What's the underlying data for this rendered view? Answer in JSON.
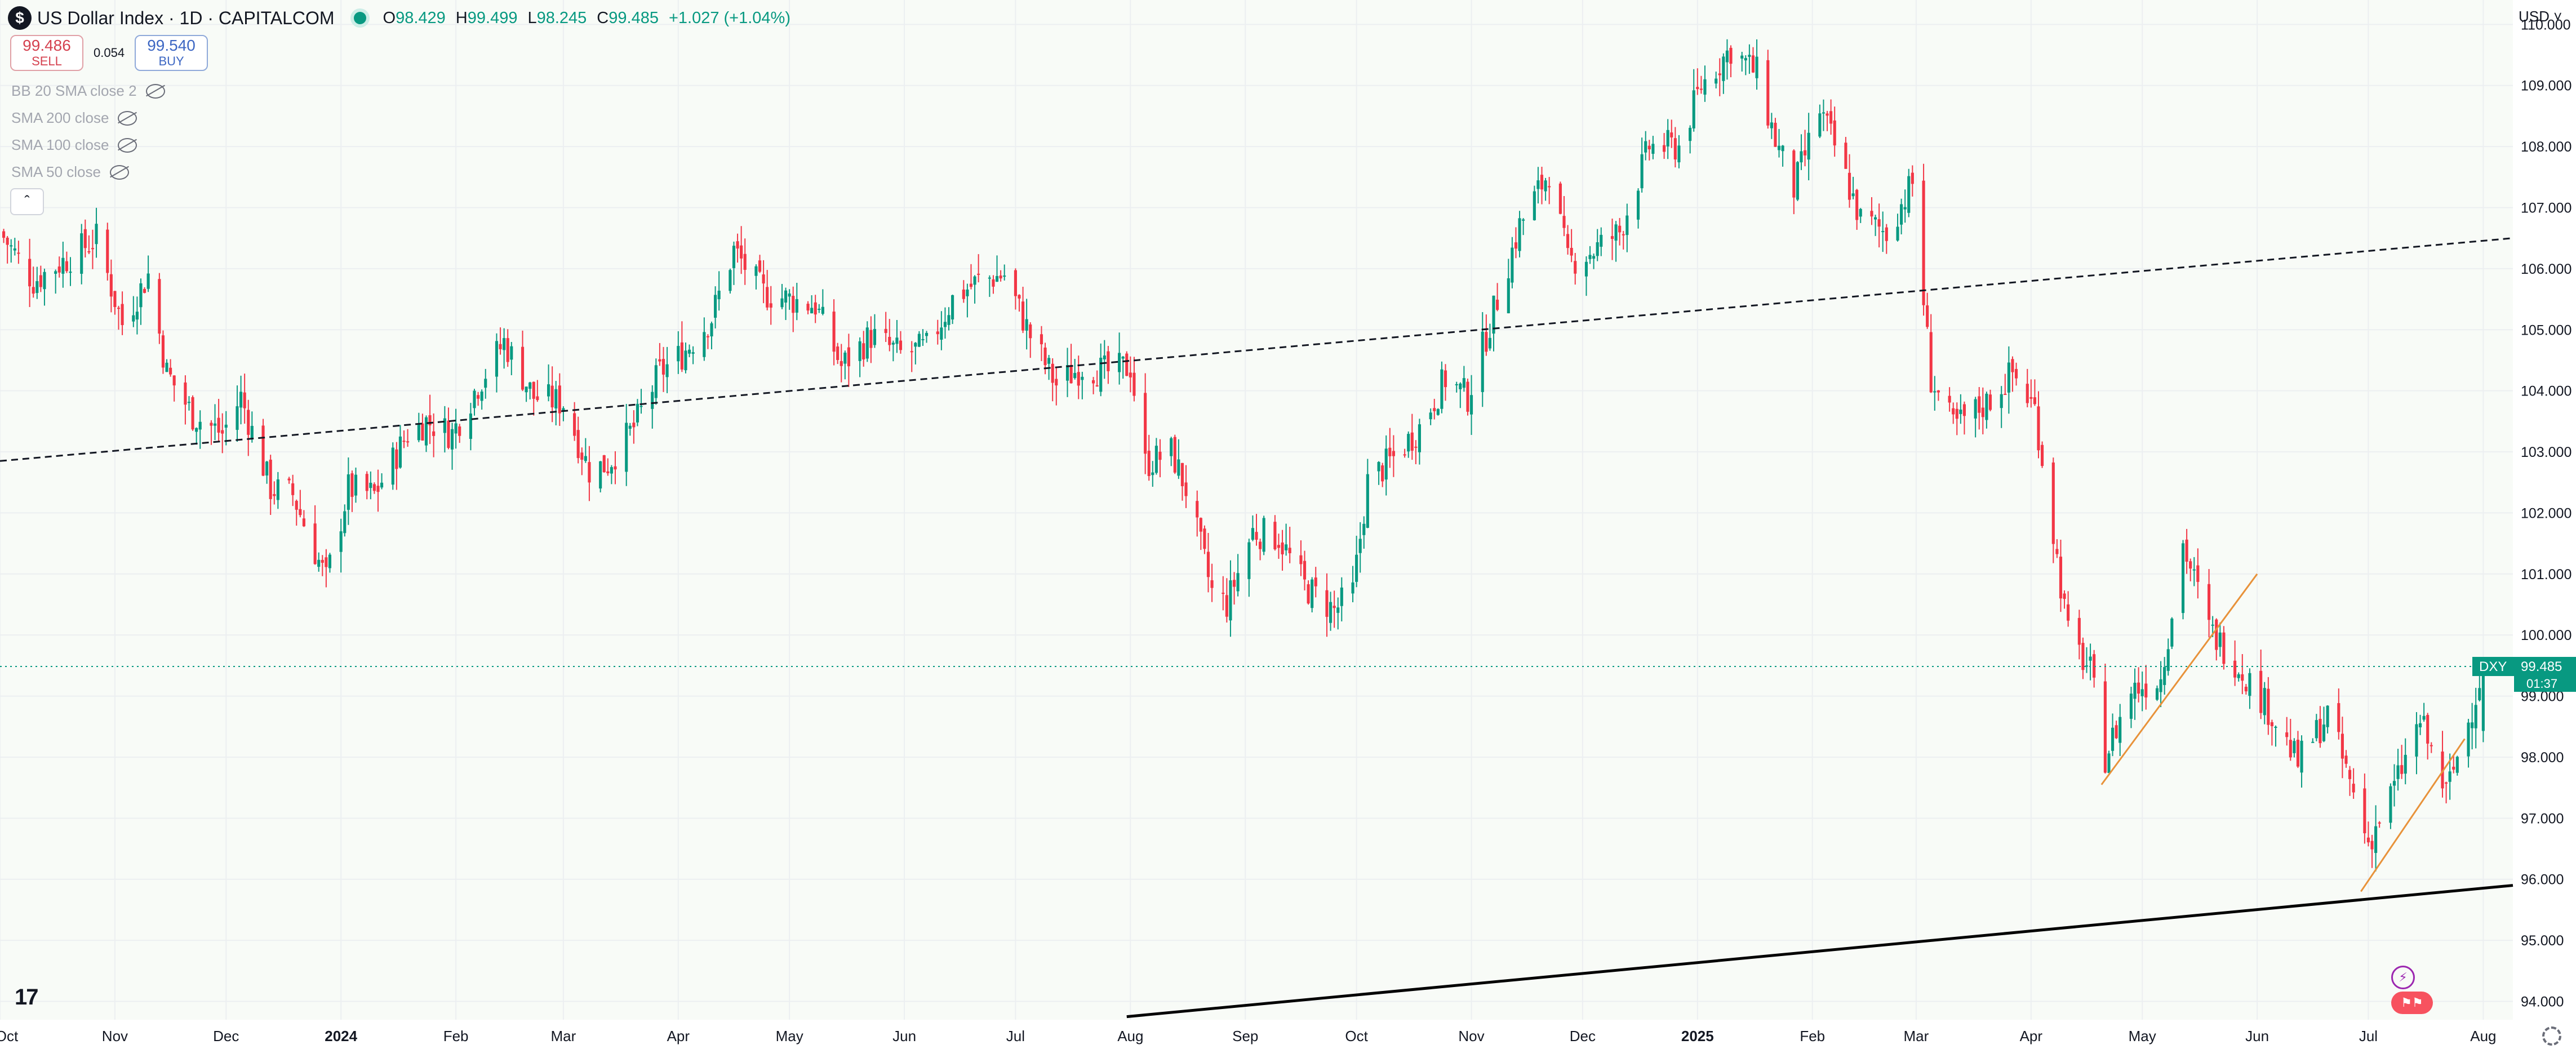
{
  "header": {
    "title": "US Dollar Index · 1D · CAPITALCOM",
    "open_label": "O",
    "open": "98.429",
    "high_label": "H",
    "high": "99.499",
    "low_label": "L",
    "low": "98.245",
    "close_label": "C",
    "close": "99.485",
    "change": "+1.027 (+1.04%)"
  },
  "trade": {
    "sell_price": "99.486",
    "sell_label": "SELL",
    "spread": "0.054",
    "buy_price": "99.540",
    "buy_label": "BUY"
  },
  "indicators": [
    "BB 20 SMA close 2",
    "SMA 200 close",
    "SMA 100 close",
    "SMA 50 close"
  ],
  "currency": "USD",
  "price_tag": {
    "symbol": "DXY",
    "price": "99.485",
    "countdown": "01:37"
  },
  "colors": {
    "up": "#089981",
    "down": "#f23645",
    "background": "#f8fbf7",
    "grid": "#eceff1"
  },
  "icons": [
    "tradingview-logo-icon",
    "lightning-icon",
    "us-flag-icon",
    "settings-gear-icon",
    "eye-off-icon",
    "chevron-up-icon"
  ],
  "chart_data": {
    "type": "candlestick",
    "timeframe": "1D",
    "y_axis": {
      "ticks": [
        "110.000",
        "109.000",
        "108.000",
        "107.000",
        "106.000",
        "105.000",
        "104.000",
        "103.000",
        "102.000",
        "101.000",
        "100.000",
        "99.000",
        "98.000",
        "97.000",
        "96.000",
        "95.000",
        "94.000"
      ],
      "ylim": [
        93.7,
        110.4
      ]
    },
    "x_axis": {
      "ticks": [
        "Oct",
        "Nov",
        "Dec",
        "2024",
        "Feb",
        "Mar",
        "Apr",
        "May",
        "Jun",
        "Jul",
        "Aug",
        "Sep",
        "Oct",
        "Nov",
        "Dec",
        "2025",
        "Feb",
        "Mar",
        "Apr",
        "May",
        "Jun",
        "Jul",
        "Aug"
      ],
      "xlim": [
        "2023-10-01",
        "2025-08-09"
      ]
    },
    "close_path": [
      [
        "2023-10-01",
        106.6
      ],
      [
        "2023-10-10",
        105.8
      ],
      [
        "2023-10-20",
        106.2
      ],
      [
        "2023-10-27",
        106.5
      ],
      [
        "2023-11-03",
        105.1
      ],
      [
        "2023-11-10",
        105.9
      ],
      [
        "2023-11-15",
        104.3
      ],
      [
        "2023-11-22",
        103.6
      ],
      [
        "2023-11-30",
        103.3
      ],
      [
        "2023-12-05",
        103.9
      ],
      [
        "2023-12-13",
        102.4
      ],
      [
        "2023-12-19",
        102.3
      ],
      [
        "2023-12-28",
        100.9
      ],
      [
        "2024-01-03",
        102.4
      ],
      [
        "2024-01-10",
        102.3
      ],
      [
        "2024-01-19",
        103.3
      ],
      [
        "2024-01-24",
        103.5
      ],
      [
        "2024-01-31",
        103.3
      ],
      [
        "2024-02-07",
        104.1
      ],
      [
        "2024-02-14",
        104.8
      ],
      [
        "2024-02-22",
        103.9
      ],
      [
        "2024-03-01",
        103.8
      ],
      [
        "2024-03-08",
        102.7
      ],
      [
        "2024-03-13",
        102.8
      ],
      [
        "2024-03-20",
        103.4
      ],
      [
        "2024-03-27",
        104.3
      ],
      [
        "2024-04-02",
        104.6
      ],
      [
        "2024-04-10",
        105.2
      ],
      [
        "2024-04-16",
        106.3
      ],
      [
        "2024-04-24",
        105.6
      ],
      [
        "2024-05-01",
        105.5
      ],
      [
        "2024-05-08",
        105.4
      ],
      [
        "2024-05-15",
        104.4
      ],
      [
        "2024-05-23",
        104.9
      ],
      [
        "2024-05-31",
        104.6
      ],
      [
        "2024-06-07",
        104.7
      ],
      [
        "2024-06-14",
        105.5
      ],
      [
        "2024-06-21",
        105.8
      ],
      [
        "2024-06-28",
        105.9
      ],
      [
        "2024-07-05",
        104.9
      ],
      [
        "2024-07-12",
        104.1
      ],
      [
        "2024-07-19",
        104.4
      ],
      [
        "2024-07-26",
        104.3
      ],
      [
        "2024-08-01",
        104.4
      ],
      [
        "2024-08-05",
        102.8
      ],
      [
        "2024-08-12",
        103.0
      ],
      [
        "2024-08-16",
        102.4
      ],
      [
        "2024-08-23",
        100.7
      ],
      [
        "2024-08-27",
        100.5
      ],
      [
        "2024-09-03",
        101.7
      ],
      [
        "2024-09-10",
        101.6
      ],
      [
        "2024-09-17",
        100.8
      ],
      [
        "2024-09-25",
        100.4
      ],
      [
        "2024-09-30",
        100.7
      ],
      [
        "2024-10-04",
        102.5
      ],
      [
        "2024-10-11",
        102.9
      ],
      [
        "2024-10-18",
        103.4
      ],
      [
        "2024-10-25",
        104.2
      ],
      [
        "2024-10-31",
        103.9
      ],
      [
        "2024-11-06",
        105.1
      ],
      [
        "2024-11-14",
        106.7
      ],
      [
        "2024-11-22",
        107.6
      ],
      [
        "2024-11-27",
        106.1
      ],
      [
        "2024-12-04",
        106.3
      ],
      [
        "2024-12-11",
        106.6
      ],
      [
        "2024-12-19",
        108.0
      ],
      [
        "2024-12-27",
        108.0
      ],
      [
        "2025-01-02",
        109.0
      ],
      [
        "2025-01-10",
        109.6
      ],
      [
        "2025-01-17",
        109.2
      ],
      [
        "2025-01-22",
        108.1
      ],
      [
        "2025-01-27",
        107.3
      ],
      [
        "2025-02-03",
        108.6
      ],
      [
        "2025-02-07",
        108.0
      ],
      [
        "2025-02-14",
        106.8
      ],
      [
        "2025-02-21",
        106.6
      ],
      [
        "2025-02-28",
        107.4
      ],
      [
        "2025-03-05",
        104.2
      ],
      [
        "2025-03-11",
        103.4
      ],
      [
        "2025-03-20",
        103.8
      ],
      [
        "2025-03-27",
        104.3
      ],
      [
        "2025-04-02",
        103.7
      ],
      [
        "2025-04-04",
        102.9
      ],
      [
        "2025-04-11",
        100.0
      ],
      [
        "2025-04-17",
        99.4
      ],
      [
        "2025-04-21",
        98.0
      ],
      [
        "2025-04-28",
        99.1
      ],
      [
        "2025-05-06",
        99.3
      ],
      [
        "2025-05-12",
        101.5
      ],
      [
        "2025-05-19",
        100.1
      ],
      [
        "2025-05-27",
        99.5
      ],
      [
        "2025-06-04",
        98.8
      ],
      [
        "2025-06-12",
        97.9
      ],
      [
        "2025-06-20",
        98.7
      ],
      [
        "2025-06-27",
        97.4
      ],
      [
        "2025-07-01",
        96.6
      ],
      [
        "2025-07-08",
        97.5
      ],
      [
        "2025-07-15",
        98.6
      ],
      [
        "2025-07-22",
        97.4
      ],
      [
        "2025-07-28",
        98.6
      ],
      [
        "2025-08-01",
        99.485
      ]
    ],
    "last_price": 99.485,
    "trendlines": [
      {
        "style": "dashed",
        "color": "#131722",
        "from": [
          "2023-10-01",
          102.85
        ],
        "to": [
          "2025-08-09",
          106.5
        ]
      },
      {
        "style": "solid",
        "color": "#000000",
        "from": [
          "2024-07-31",
          93.75
        ],
        "to": [
          "2025-08-09",
          95.9
        ]
      },
      {
        "style": "solid",
        "color": "#e8923a",
        "from": [
          "2025-04-20",
          97.55
        ],
        "to": [
          "2025-06-01",
          101.0
        ]
      },
      {
        "style": "solid",
        "color": "#e8923a",
        "from": [
          "2025-06-29",
          95.8
        ],
        "to": [
          "2025-07-27",
          98.3
        ]
      }
    ]
  }
}
